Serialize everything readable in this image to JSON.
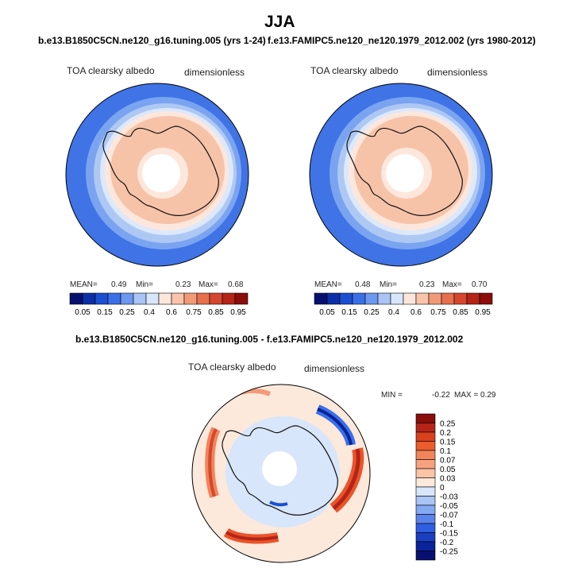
{
  "figure": {
    "title": "JJA",
    "subtitle_left": "b.e13.B1850C5CN.ne120_g16.tuning.005 (yrs 1-24)",
    "subtitle_right": "f.e13.FAMIPC5.ne120_ne120.1979_2012.002 (yrs 1980-2012)",
    "subtitle_diff": "b.e13.B1850C5CN.ne120_g16.tuning.005 - f.e13.FAMIPC5.ne120_ne120.1979_2012.002"
  },
  "panels": [
    {
      "variable": "TOA clearsky albedo",
      "units": "dimensionless",
      "mean_label": "MEAN=",
      "mean": "0.49",
      "min_label": "Min=",
      "min": "0.23",
      "max_label": "Max=",
      "max": "0.68"
    },
    {
      "variable": "TOA clearsky albedo",
      "units": "dimensionless",
      "mean_label": "MEAN=",
      "mean": "0.48",
      "min_label": "Min=",
      "min": "0.23",
      "max_label": "Max=",
      "max": "0.70"
    },
    {
      "variable": "TOA clearsky albedo",
      "units": "dimensionless",
      "min_label": "MIN =",
      "min": "-0.22",
      "max_label": "MAX =",
      "max": "0.29"
    }
  ],
  "colorbar_main": {
    "labels": [
      "0.05",
      "0.15",
      "0.25",
      "0.4",
      "0.6",
      "0.75",
      "0.85",
      "0.95"
    ],
    "colors": [
      "#08106f",
      "#0a2fa8",
      "#1a4fd0",
      "#3a6fe8",
      "#6c98f0",
      "#a9c4f5",
      "#d7e6fa",
      "#fde7dc",
      "#f9c4aa",
      "#f29a78",
      "#e66f4c",
      "#d4472e",
      "#b52417",
      "#8a0d0a"
    ]
  },
  "colorbar_diff": {
    "labels": [
      "0.25",
      "0.2",
      "0.15",
      "0.1",
      "0.07",
      "0.05",
      "0.03",
      "0",
      "-0.03",
      "-0.05",
      "-0.07",
      "-0.1",
      "-0.15",
      "-0.2",
      "-0.25"
    ],
    "colors": [
      "#8a0d0a",
      "#b52417",
      "#d9401c",
      "#ea5d2c",
      "#f2845a",
      "#f7a27e",
      "#fbc4a6",
      "#fde8dc",
      "#d7e6fa",
      "#a9c4f5",
      "#84a8f2",
      "#5a84ec",
      "#2f5ee0",
      "#1a3fc0",
      "#0a239a",
      "#08106f"
    ]
  },
  "chart_data": [
    {
      "type": "heatmap",
      "title": "TOA clearsky albedo",
      "units": "dimensionless",
      "case": "b.e13.B1850C5CN.ne120_g16.tuning.005 (yrs 1-24)",
      "season": "JJA",
      "projection": "south polar stereographic",
      "levels": [
        0.05,
        0.1,
        0.15,
        0.2,
        0.25,
        0.3,
        0.4,
        0.5,
        0.6,
        0.7,
        0.75,
        0.8,
        0.85,
        0.9,
        0.95
      ],
      "mean": 0.49,
      "min": 0.23,
      "max": 0.68
    },
    {
      "type": "heatmap",
      "title": "TOA clearsky albedo",
      "units": "dimensionless",
      "case": "f.e13.FAMIPC5.ne120_ne120.1979_2012.002 (yrs 1980-2012)",
      "season": "JJA",
      "projection": "south polar stereographic",
      "levels": [
        0.05,
        0.1,
        0.15,
        0.2,
        0.25,
        0.3,
        0.4,
        0.5,
        0.6,
        0.7,
        0.75,
        0.8,
        0.85,
        0.9,
        0.95
      ],
      "mean": 0.48,
      "min": 0.23,
      "max": 0.7
    },
    {
      "type": "heatmap",
      "title": "TOA clearsky albedo",
      "units": "dimensionless",
      "case": "difference",
      "season": "JJA",
      "projection": "south polar stereographic",
      "levels": [
        -0.25,
        -0.2,
        -0.15,
        -0.1,
        -0.07,
        -0.05,
        -0.03,
        0,
        0.03,
        0.05,
        0.07,
        0.1,
        0.15,
        0.2,
        0.25
      ],
      "min": -0.22,
      "max": 0.29
    }
  ]
}
